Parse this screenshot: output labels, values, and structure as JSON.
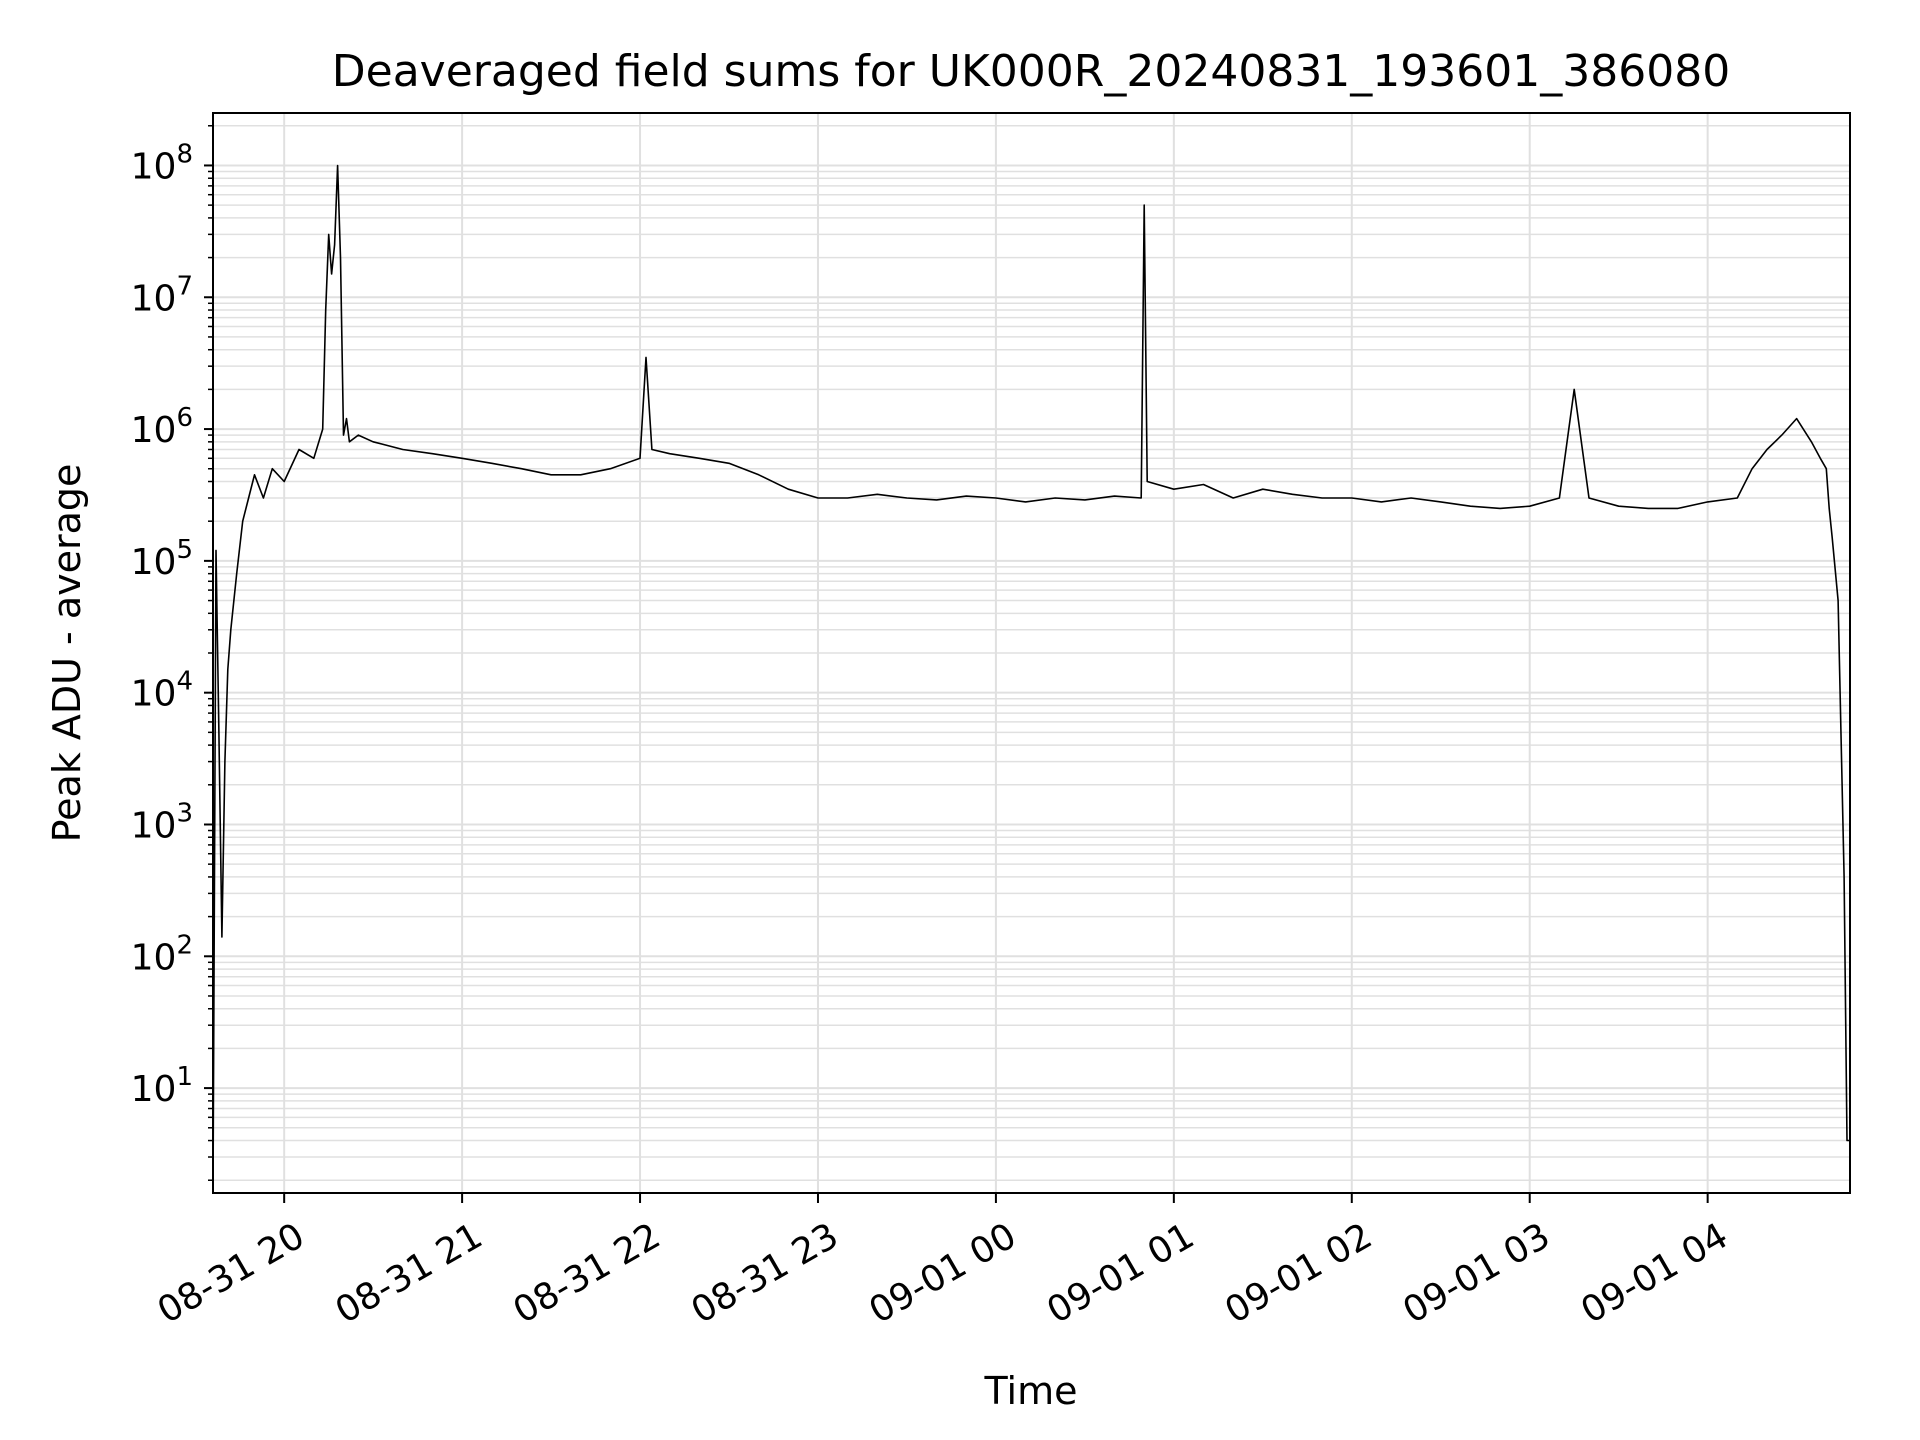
{
  "chart_data": {
    "type": "line",
    "title": "Deaveraged field sums for UK000R_20240831_193601_386080",
    "xlabel": "Time",
    "ylabel": "Peak ADU - average",
    "yscale": "log",
    "ylim": [
      1.6,
      250000000
    ],
    "xlim": [
      "2024-08-31 19:36",
      "2024-09-01 04:48"
    ],
    "grid": true,
    "line_color": "#000000",
    "grid_color": "#e0e0e0",
    "x_ticks": [
      {
        "value": "2024-08-31 20:00",
        "label": "08-31 20"
      },
      {
        "value": "2024-08-31 21:00",
        "label": "08-31 21"
      },
      {
        "value": "2024-08-31 22:00",
        "label": "08-31 22"
      },
      {
        "value": "2024-08-31 23:00",
        "label": "08-31 23"
      },
      {
        "value": "2024-09-01 00:00",
        "label": "09-01 00"
      },
      {
        "value": "2024-09-01 01:00",
        "label": "09-01 01"
      },
      {
        "value": "2024-09-01 02:00",
        "label": "09-01 02"
      },
      {
        "value": "2024-09-01 03:00",
        "label": "09-01 03"
      },
      {
        "value": "2024-09-01 04:00",
        "label": "09-01 04"
      }
    ],
    "y_ticks": [
      {
        "value": 10,
        "base": "10",
        "exp": "1"
      },
      {
        "value": 100,
        "base": "10",
        "exp": "2"
      },
      {
        "value": 1000,
        "base": "10",
        "exp": "3"
      },
      {
        "value": 10000,
        "base": "10",
        "exp": "4"
      },
      {
        "value": 100000,
        "base": "10",
        "exp": "5"
      },
      {
        "value": 1000000,
        "base": "10",
        "exp": "6"
      },
      {
        "value": 10000000,
        "base": "10",
        "exp": "7"
      },
      {
        "value": 100000000,
        "base": "10",
        "exp": "8"
      }
    ],
    "series": [
      {
        "x": [
          "2024-08-31 19:36",
          "2024-08-31 19:37",
          "2024-08-31 19:38",
          "2024-08-31 19:39",
          "2024-08-31 19:40",
          "2024-08-31 19:41",
          "2024-08-31 19:42",
          "2024-08-31 19:44",
          "2024-08-31 19:46",
          "2024-08-31 19:48",
          "2024-08-31 19:50",
          "2024-08-31 19:53",
          "2024-08-31 19:56",
          "2024-08-31 20:00",
          "2024-08-31 20:05",
          "2024-08-31 20:10",
          "2024-08-31 20:13",
          "2024-08-31 20:14",
          "2024-08-31 20:15",
          "2024-08-31 20:16",
          "2024-08-31 20:17",
          "2024-08-31 20:18",
          "2024-08-31 20:19",
          "2024-08-31 20:20",
          "2024-08-31 20:21",
          "2024-08-31 20:22",
          "2024-08-31 20:25",
          "2024-08-31 20:30",
          "2024-08-31 20:40",
          "2024-08-31 20:50",
          "2024-08-31 21:00",
          "2024-08-31 21:10",
          "2024-08-31 21:20",
          "2024-08-31 21:30",
          "2024-08-31 21:40",
          "2024-08-31 21:50",
          "2024-08-31 22:00",
          "2024-08-31 22:02",
          "2024-08-31 22:04",
          "2024-08-31 22:10",
          "2024-08-31 22:20",
          "2024-08-31 22:30",
          "2024-08-31 22:40",
          "2024-08-31 22:50",
          "2024-08-31 23:00",
          "2024-08-31 23:10",
          "2024-08-31 23:20",
          "2024-08-31 23:30",
          "2024-08-31 23:40",
          "2024-08-31 23:50",
          "2024-09-01 00:00",
          "2024-09-01 00:10",
          "2024-09-01 00:20",
          "2024-09-01 00:30",
          "2024-09-01 00:40",
          "2024-09-01 00:49",
          "2024-09-01 00:50",
          "2024-09-01 00:51",
          "2024-09-01 01:00",
          "2024-09-01 01:10",
          "2024-09-01 01:20",
          "2024-09-01 01:30",
          "2024-09-01 01:40",
          "2024-09-01 01:50",
          "2024-09-01 02:00",
          "2024-09-01 02:10",
          "2024-09-01 02:20",
          "2024-09-01 02:30",
          "2024-09-01 02:40",
          "2024-09-01 02:50",
          "2024-09-01 03:00",
          "2024-09-01 03:10",
          "2024-09-01 03:15",
          "2024-09-01 03:20",
          "2024-09-01 03:30",
          "2024-09-01 03:40",
          "2024-09-01 03:50",
          "2024-09-01 04:00",
          "2024-09-01 04:10",
          "2024-09-01 04:15",
          "2024-09-01 04:20",
          "2024-09-01 04:25",
          "2024-09-01 04:30",
          "2024-09-01 04:35",
          "2024-09-01 04:38",
          "2024-09-01 04:40",
          "2024-09-01 04:41",
          "2024-09-01 04:42",
          "2024-09-01 04:44",
          "2024-09-01 04:46",
          "2024-09-01 04:47",
          "2024-09-01 04:48"
        ],
        "y": [
          1.6,
          120000,
          5000,
          140,
          3000,
          15000,
          30000,
          80000,
          200000,
          300000,
          450000,
          300000,
          500000,
          400000,
          700000,
          600000,
          1000000,
          8000000,
          30000000,
          15000000,
          25000000,
          100000000,
          20000000,
          900000,
          1200000,
          800000,
          900000,
          800000,
          700000,
          650000,
          600000,
          550000,
          500000,
          450000,
          450000,
          500000,
          600000,
          3500000,
          700000,
          650000,
          600000,
          550000,
          450000,
          350000,
          300000,
          300000,
          320000,
          300000,
          290000,
          310000,
          300000,
          280000,
          300000,
          290000,
          310000,
          300000,
          50000000,
          400000,
          350000,
          380000,
          300000,
          350000,
          320000,
          300000,
          300000,
          280000,
          300000,
          280000,
          260000,
          250000,
          260000,
          300000,
          2000000,
          300000,
          260000,
          250000,
          250000,
          280000,
          300000,
          500000,
          700000,
          900000,
          1200000,
          800000,
          600000,
          500000,
          250000,
          150000,
          50000,
          400,
          4,
          4
        ]
      }
    ]
  }
}
